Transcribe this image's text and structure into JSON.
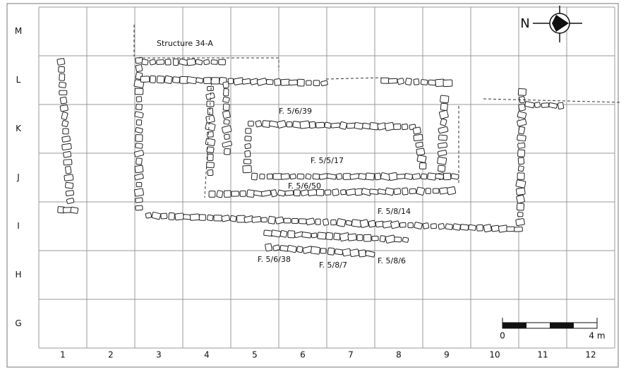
{
  "rows": [
    "M",
    "L",
    "K",
    "J",
    "I",
    "H",
    "G"
  ],
  "columns": [
    "1",
    "2",
    "3",
    "4",
    "5",
    "6",
    "7",
    "8",
    "9",
    "10",
    "11",
    "12"
  ],
  "features": [
    "Structure 34-A",
    "F. 5/6/39",
    "F. 5/5/17",
    "F. 5/6/50",
    "F. 5/8/14",
    "F. 5/6/38",
    "F. 5/8/7",
    "F. 5/8/6"
  ],
  "north": "N",
  "scale": {
    "start": "0",
    "end": "4 m"
  }
}
